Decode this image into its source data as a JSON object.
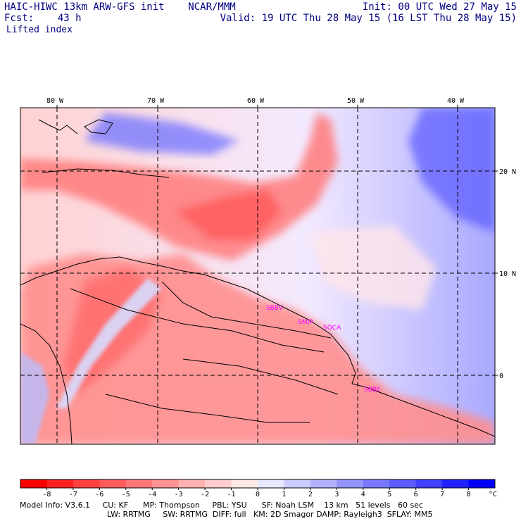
{
  "header": {
    "title": "HAIC-HIWC 13km ARW-GFS init    NCAR/MMM",
    "init": "Init: 00 UTC Wed 27 May 15",
    "fcst": "Fcst:    43 h",
    "valid": "Valid: 19 UTC Thu 28 May 15 (16 LST Thu 28 May 15)",
    "field": "Lifted index"
  },
  "map": {
    "lon_labels": [
      "80 W",
      "70 W",
      "60 W",
      "50 W",
      "40 W"
    ],
    "lat_labels": [
      "20 N",
      "10 N",
      "0"
    ],
    "lon_range": [
      -83,
      -36
    ],
    "lat_range": [
      -7,
      26
    ],
    "grid_lons": [
      -80,
      -70,
      -60,
      -50,
      -40
    ],
    "grid_lats": [
      20,
      10,
      0
    ],
    "stations": [
      {
        "name": "SBBV",
        "lon": -59.0,
        "lat": 6.8
      },
      {
        "name": "SMJP",
        "lon": -55.2,
        "lat": 5.5
      },
      {
        "name": "SOCA",
        "lon": -52.4,
        "lat": 4.8
      },
      {
        "name": "SBBE",
        "lon": -48.6,
        "lat": -1.4
      }
    ]
  },
  "colorbar": {
    "ticks": [
      "-8",
      "-7",
      "-6",
      "-5",
      "-4",
      "-3",
      "-2",
      "-1",
      "0",
      "1",
      "2",
      "3",
      "4",
      "5",
      "6",
      "7",
      "8"
    ],
    "unit": "°C",
    "colors": [
      "#ff0000",
      "#ff2020",
      "#ff4040",
      "#ff5c5c",
      "#ff7878",
      "#ff9494",
      "#ffb0b0",
      "#ffcccc",
      "#ffe8e8",
      "#e8e8ff",
      "#ccccff",
      "#b0b0ff",
      "#9494ff",
      "#7878ff",
      "#5c5cff",
      "#4040ff",
      "#2020ff",
      "#0000ff"
    ]
  },
  "footer": {
    "line1": "Model Info: V3.6.1     CU: KF      MP: Thompson     PBL: YSU      SF: Noah LSM    13 km   51 levels   60 sec",
    "line2": "LW: RRTMG     SW: RRTMG  DIFF: full   KM: 2D Smagor DAMP: Rayleigh3  SFLAY: MM5"
  }
}
